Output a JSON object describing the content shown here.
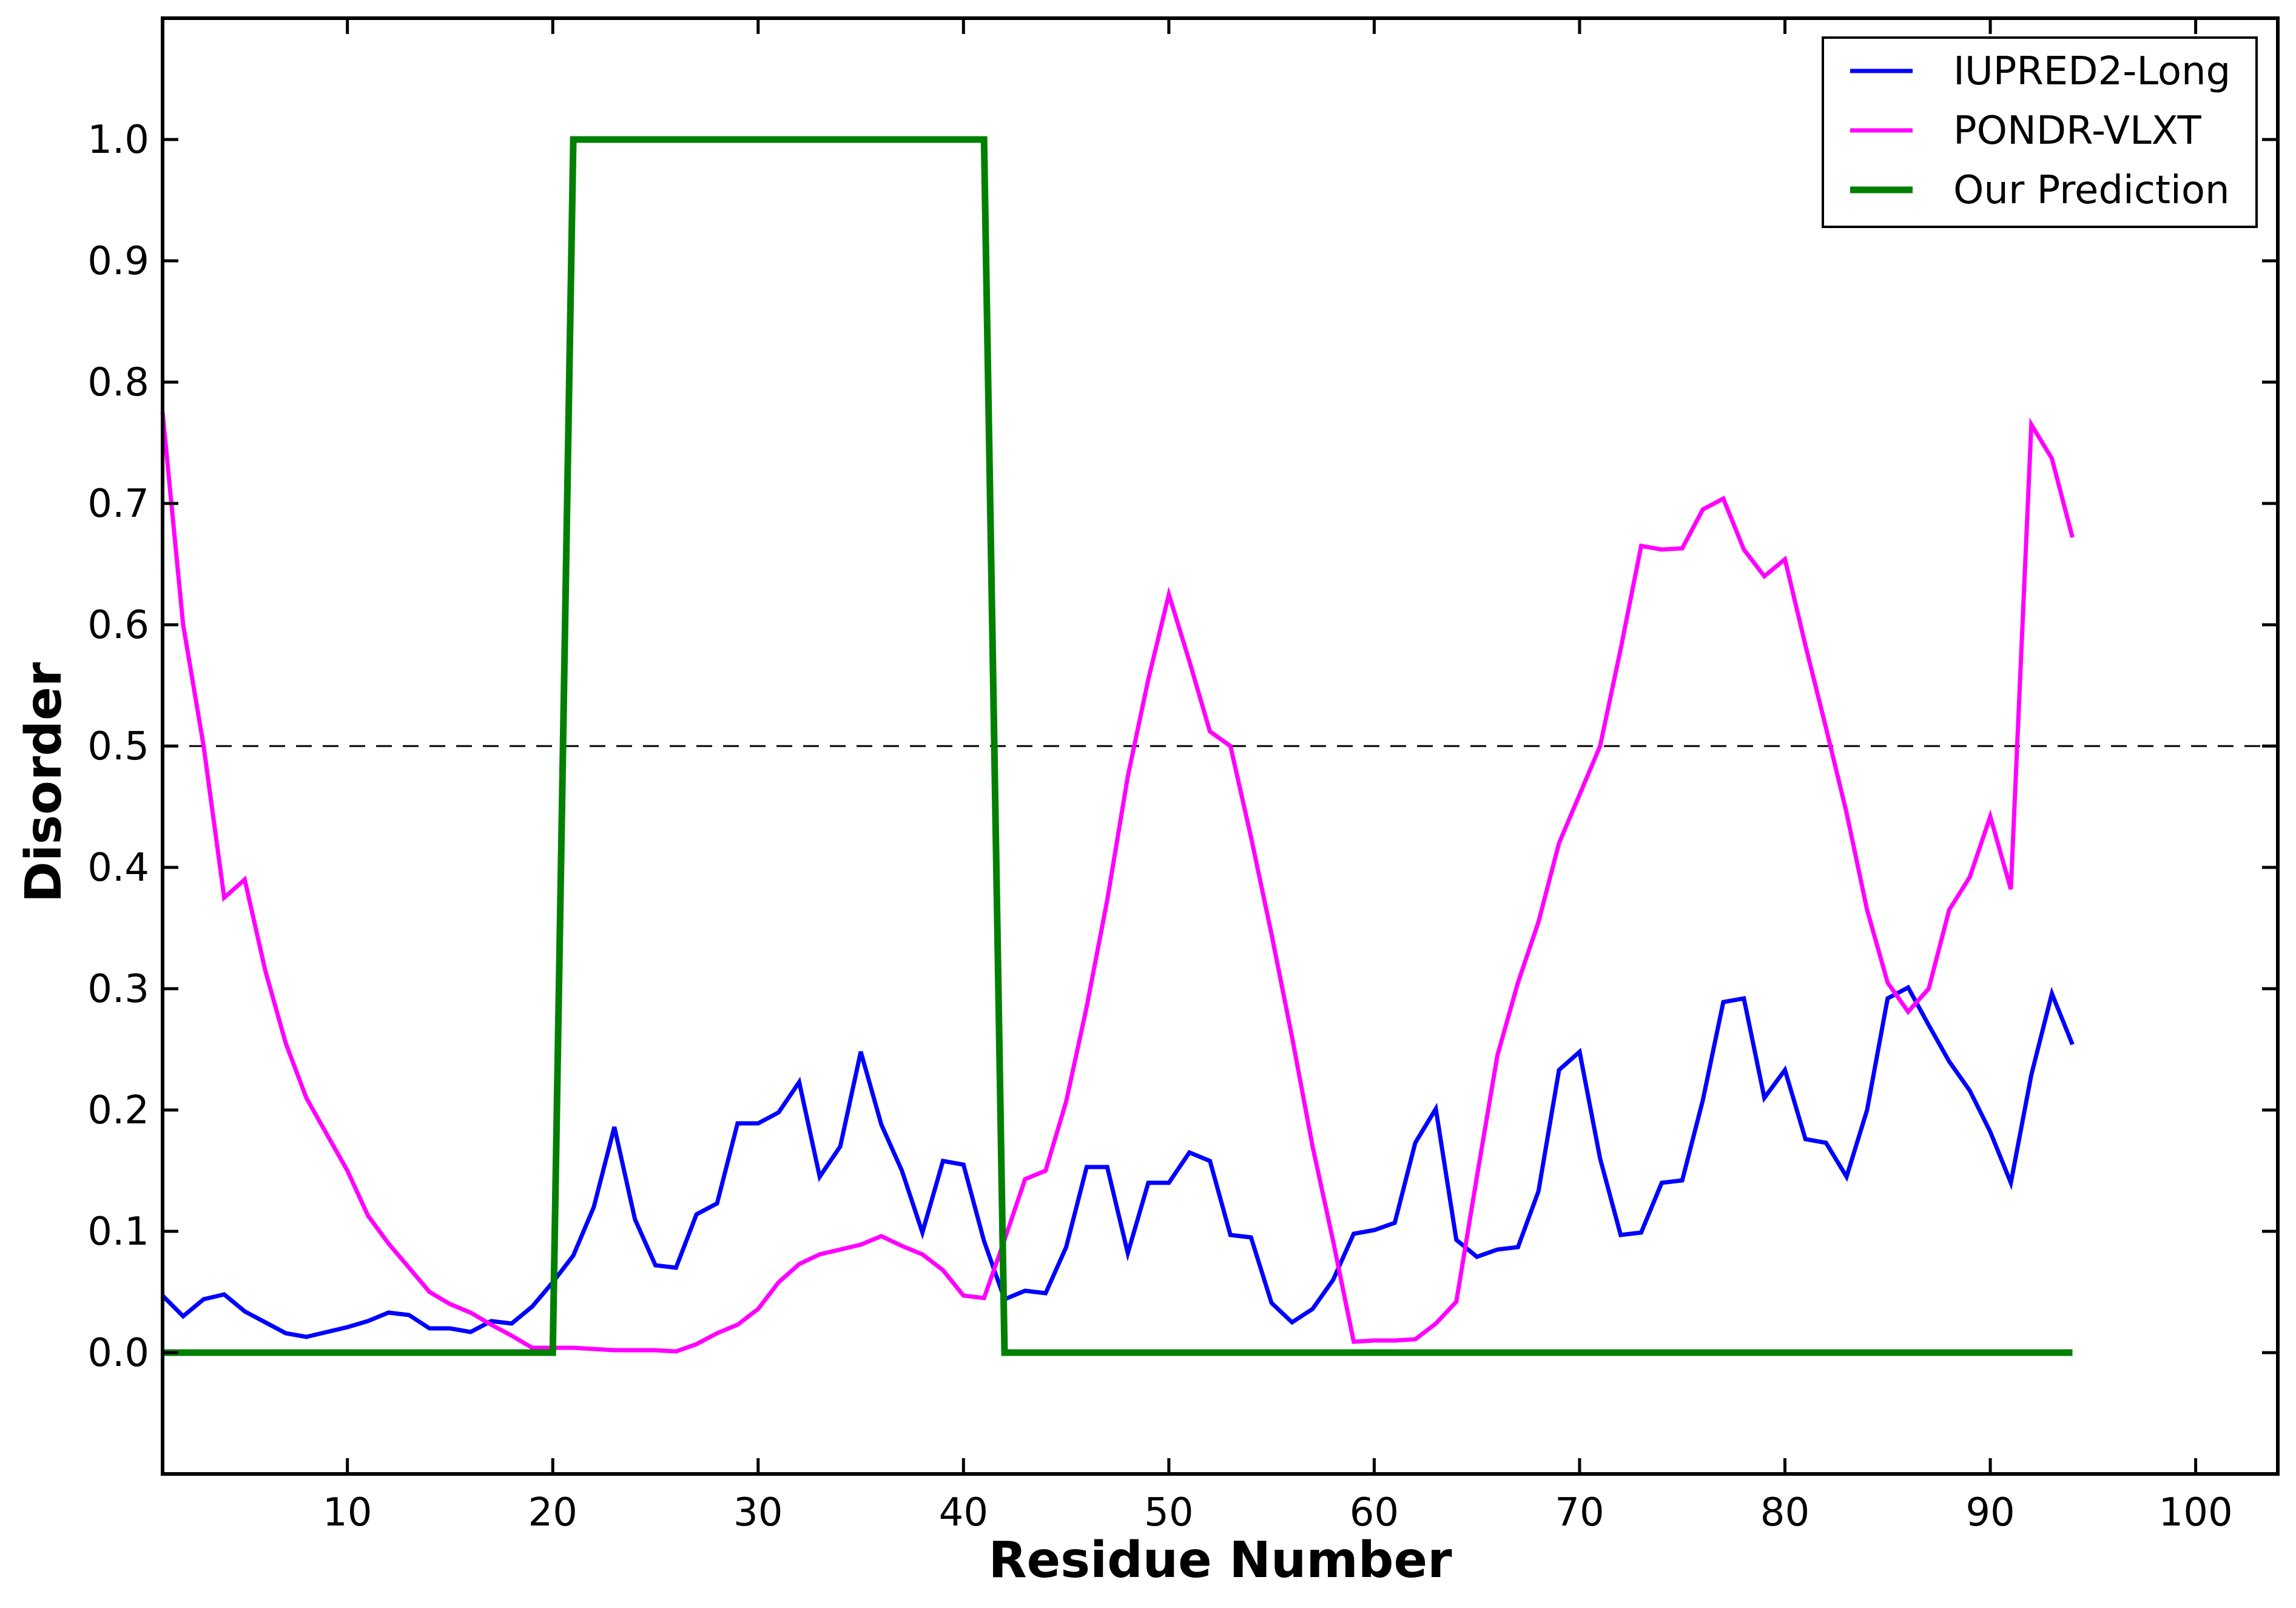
{
  "chart_data": {
    "type": "line",
    "title": "",
    "xlabel": "Residue Number",
    "ylabel": "Disorder",
    "xlim": [
      1,
      104
    ],
    "ylim": [
      -0.1,
      1.1
    ],
    "x_ticks": [
      10,
      20,
      30,
      40,
      50,
      60,
      70,
      80,
      90,
      100
    ],
    "x_tick_labels": [
      "10",
      "20",
      "30",
      "40",
      "50",
      "60",
      "70",
      "80",
      "90",
      "100"
    ],
    "y_ticks": [
      0.0,
      0.1,
      0.2,
      0.3,
      0.4,
      0.5,
      0.6,
      0.7,
      0.8,
      0.9,
      1.0
    ],
    "y_tick_labels": [
      "0.0",
      "0.1",
      "0.2",
      "0.3",
      "0.4",
      "0.5",
      "0.6",
      "0.7",
      "0.8",
      "0.9",
      "1.0"
    ],
    "grid": false,
    "legend_position": "top-right",
    "threshold": {
      "y": 0.5,
      "style": "dashed",
      "color": "#000000"
    },
    "series": [
      {
        "name": "IUPRED2-Long",
        "color": "#0000ff",
        "x": [
          1,
          2,
          3,
          4,
          5,
          6,
          7,
          8,
          9,
          10,
          11,
          12,
          13,
          14,
          15,
          16,
          17,
          18,
          19,
          20,
          21,
          22,
          23,
          24,
          25,
          26,
          27,
          28,
          29,
          30,
          31,
          32,
          33,
          34,
          35,
          36,
          37,
          38,
          39,
          40,
          41,
          42,
          43,
          44,
          45,
          46,
          47,
          48,
          49,
          50,
          51,
          52,
          53,
          54,
          55,
          56,
          57,
          58,
          59,
          60,
          61,
          62,
          63,
          64,
          65,
          66,
          67,
          68,
          69,
          70,
          71,
          72,
          73,
          74,
          75,
          76,
          77,
          78,
          79,
          80,
          81,
          82,
          83,
          84,
          85,
          86,
          87,
          88,
          89,
          90,
          91,
          92,
          93,
          94
        ],
        "values": [
          0.047,
          0.03,
          0.044,
          0.048,
          0.034,
          0.025,
          0.016,
          0.013,
          0.017,
          0.021,
          0.026,
          0.033,
          0.031,
          0.02,
          0.02,
          0.017,
          0.026,
          0.024,
          0.038,
          0.058,
          0.08,
          0.12,
          0.186,
          0.11,
          0.072,
          0.07,
          0.114,
          0.123,
          0.189,
          0.189,
          0.198,
          0.223,
          0.145,
          0.17,
          0.248,
          0.188,
          0.15,
          0.099,
          0.158,
          0.155,
          0.092,
          0.044,
          0.051,
          0.049,
          0.087,
          0.153,
          0.153,
          0.082,
          0.14,
          0.14,
          0.165,
          0.158,
          0.097,
          0.095,
          0.041,
          0.025,
          0.036,
          0.06,
          0.098,
          0.101,
          0.107,
          0.173,
          0.201,
          0.093,
          0.079,
          0.085,
          0.087,
          0.133,
          0.233,
          0.248,
          0.16,
          0.097,
          0.099,
          0.14,
          0.142,
          0.208,
          0.289,
          0.292,
          0.21,
          0.233,
          0.176,
          0.173,
          0.145,
          0.2,
          0.292,
          0.301,
          0.27,
          0.24,
          0.216,
          0.182,
          0.14,
          0.229,
          0.296,
          0.254
        ]
      },
      {
        "name": "PONDR-VLXT",
        "color": "#ff00ff",
        "x": [
          1,
          2,
          3,
          4,
          5,
          6,
          7,
          8,
          9,
          10,
          11,
          12,
          13,
          14,
          15,
          16,
          17,
          18,
          19,
          20,
          21,
          22,
          23,
          24,
          25,
          26,
          27,
          28,
          29,
          30,
          31,
          32,
          33,
          34,
          35,
          36,
          37,
          38,
          39,
          40,
          41,
          42,
          43,
          44,
          45,
          46,
          47,
          48,
          49,
          50,
          51,
          52,
          53,
          54,
          55,
          56,
          57,
          58,
          59,
          60,
          61,
          62,
          63,
          64,
          65,
          66,
          67,
          68,
          69,
          70,
          71,
          72,
          73,
          74,
          75,
          76,
          77,
          78,
          79,
          80,
          81,
          82,
          83,
          84,
          85,
          86,
          87,
          88,
          89,
          90,
          91,
          92,
          93,
          94
        ],
        "values": [
          0.775,
          0.6,
          0.5,
          0.375,
          0.39,
          0.315,
          0.255,
          0.21,
          0.18,
          0.15,
          0.113,
          0.09,
          0.07,
          0.05,
          0.04,
          0.033,
          0.023,
          0.014,
          0.004,
          0.004,
          0.004,
          0.003,
          0.002,
          0.002,
          0.002,
          0.001,
          0.007,
          0.016,
          0.023,
          0.036,
          0.058,
          0.073,
          0.081,
          0.085,
          0.089,
          0.096,
          0.088,
          0.081,
          0.068,
          0.047,
          0.045,
          0.093,
          0.143,
          0.15,
          0.207,
          0.285,
          0.373,
          0.475,
          0.555,
          0.625,
          0.57,
          0.512,
          0.5,
          0.425,
          0.345,
          0.26,
          0.17,
          0.092,
          0.009,
          0.01,
          0.01,
          0.011,
          0.024,
          0.042,
          0.145,
          0.245,
          0.305,
          0.355,
          0.42,
          0.46,
          0.5,
          0.58,
          0.665,
          0.662,
          0.663,
          0.695,
          0.704,
          0.662,
          0.64,
          0.654,
          0.583,
          0.515,
          0.445,
          0.365,
          0.305,
          0.281,
          0.3,
          0.365,
          0.392,
          0.442,
          0.382,
          0.765,
          0.737,
          0.672
        ]
      },
      {
        "name": "Our Prediction",
        "color": "#008000",
        "x": [
          1,
          20,
          21,
          41,
          42,
          94
        ],
        "values": [
          0,
          0,
          1,
          1,
          0,
          0
        ]
      }
    ]
  }
}
